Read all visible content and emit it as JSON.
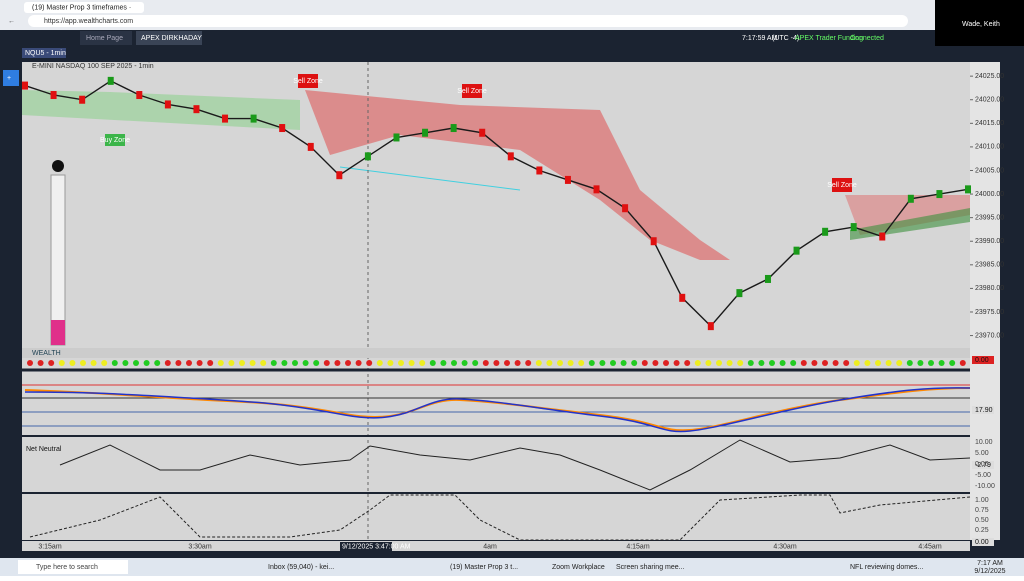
{
  "browser": {
    "tab_title": "(19) Master Prop 3 timeframes ·",
    "url": "https://app.wealthcharts.com",
    "user": "Wade, Keith"
  },
  "app": {
    "tabs": [
      "Home Page",
      "APEX DIRKHADAY"
    ],
    "clock": "7:17:59 AM",
    "timezone": "(UTC -4)",
    "account": "APEX Trader Funding",
    "status": "Connected"
  },
  "chart": {
    "symbol": "NQU5 - 1min",
    "description": "E-MINI NASDAQ 100 SEP 2025 - 1min",
    "zones": [
      "Sell Zone",
      "Sell Zone",
      "Sell Zone",
      "Buy Zone"
    ],
    "ylim": [
      23968,
      24028
    ],
    "yticks": [
      {
        "value": 24025,
        "label": "24025.00"
      },
      {
        "value": 24020,
        "label": "24020.00"
      },
      {
        "value": 24015,
        "label": "24015.00"
      },
      {
        "value": 24010,
        "label": "24010.00"
      },
      {
        "value": 24005,
        "label": "24005.00"
      },
      {
        "value": 24000,
        "label": "24000.00"
      },
      {
        "value": 23995,
        "label": "23995.00"
      },
      {
        "value": 23990,
        "label": "23990.00"
      },
      {
        "value": 23985,
        "label": "23985.00"
      },
      {
        "value": 23980,
        "label": "23980.00"
      },
      {
        "value": 23975,
        "label": "23975.00"
      },
      {
        "value": 23970,
        "label": "23970.00"
      }
    ],
    "price": {
      "name": "E-MINI NASDAQ 100",
      "color": "#1a1a1a",
      "values": [
        24023,
        24021,
        24020,
        24024,
        24021,
        24019,
        24018,
        24016,
        24016,
        24014,
        24010,
        24004,
        24008,
        24012,
        24013,
        24014,
        24013,
        24008,
        24005,
        24003,
        24001,
        23997,
        23990,
        23978,
        23972,
        23979,
        23982,
        23988,
        23992,
        23993,
        23991,
        23999,
        24000,
        24001
      ]
    },
    "indicator": "WEALTH",
    "net_label": "Net Neutral",
    "panel_values": [
      "0.00",
      "17.90",
      "-2.79",
      "0.00"
    ],
    "net_ticks": [
      "10.00",
      "5.00",
      "0.00",
      "-5.00",
      "-10.00"
    ],
    "osc_ticks": [
      "1.00",
      "0.75",
      "0.50",
      "0.25"
    ],
    "time_labels": [
      "3:15am",
      "3:30am",
      "4am",
      "4:15am",
      "4:30am",
      "4:45am"
    ],
    "crosshair_time": "9/12/2025 3:47:00 AM"
  },
  "taskbar": {
    "search": "Type here to search",
    "apps": [
      "Inbox (59,040) - kei...",
      "(19) Master Prop 3 t...",
      "Zoom Workplace",
      "Screen sharing mee..."
    ],
    "news": "NFL reviewing domes...",
    "time": "7:17 AM",
    "date": "9/12/2025"
  }
}
